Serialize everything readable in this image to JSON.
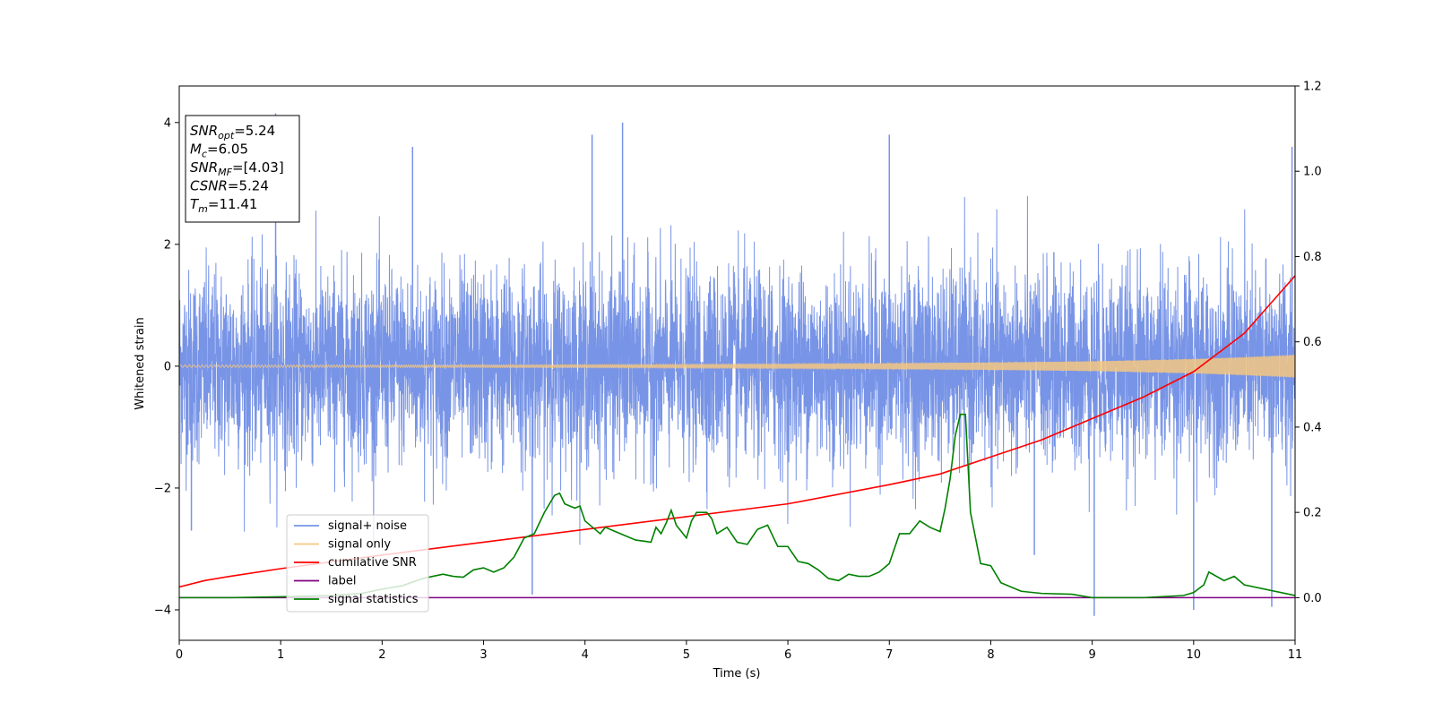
{
  "chart_data": {
    "type": "line",
    "xlabel": "Time (s)",
    "ylabel": "Whitened strain",
    "xlim": [
      0,
      11
    ],
    "ylim": [
      -4.5,
      4.6
    ],
    "ylim_right": [
      -0.1,
      1.2
    ],
    "xticks": [
      0,
      1,
      2,
      3,
      4,
      5,
      6,
      7,
      8,
      9,
      10,
      11
    ],
    "yticks": [
      -4,
      -2,
      0,
      2,
      4
    ],
    "yticks_right": [
      0.0,
      0.2,
      0.4,
      0.6,
      0.8,
      1.0,
      1.2
    ],
    "grid": false,
    "legend_placement": "lower-left",
    "legend": [
      {
        "label": "signal+ noise",
        "color": "#7894e6"
      },
      {
        "label": "signal only",
        "color": "#f5c780"
      },
      {
        "label": "cumilative SNR",
        "color": "#ff0000"
      },
      {
        "label": "label",
        "color": "#800080"
      },
      {
        "label": "signal statistics",
        "color": "#008000"
      }
    ],
    "annotation": {
      "lines": [
        {
          "base": "SNR",
          "sub": "opt",
          "rest": "=5.24"
        },
        {
          "base": "M",
          "sub": "c",
          "rest": "=6.05"
        },
        {
          "base": "SNR",
          "sub": "MF",
          "rest": "=[4.03]"
        },
        {
          "base": "CSNR",
          "sub": "",
          "rest": "=5.24"
        },
        {
          "base": "T",
          "sub": "m",
          "rest": "=11.41"
        }
      ]
    },
    "series": [
      {
        "name": "signal+ noise",
        "axis": "left",
        "color": "#7894e6",
        "description_points": "noise envelope approx ±2 with spikes",
        "spikes": [
          {
            "x": 0.95,
            "y": 4.15
          },
          {
            "x": 2.3,
            "y": 3.6
          },
          {
            "x": 4.07,
            "y": 3.8
          },
          {
            "x": 4.37,
            "y": 4.0
          },
          {
            "x": 7.0,
            "y": 3.8
          },
          {
            "x": 10.97,
            "y": 3.6
          },
          {
            "x": 3.48,
            "y": -3.75
          },
          {
            "x": 9.02,
            "y": -4.1
          },
          {
            "x": 10.0,
            "y": -4.0
          },
          {
            "x": 10.77,
            "y": -3.95
          },
          {
            "x": 0.12,
            "y": -2.7
          },
          {
            "x": 8.43,
            "y": -3.1
          }
        ]
      },
      {
        "name": "signal only",
        "axis": "left",
        "color": "#f5c780",
        "envelope": [
          [
            0,
            0.02
          ],
          [
            2,
            0.02
          ],
          [
            4,
            0.025
          ],
          [
            6,
            0.035
          ],
          [
            8,
            0.06
          ],
          [
            9,
            0.08
          ],
          [
            10,
            0.12
          ],
          [
            10.5,
            0.15
          ],
          [
            11,
            0.19
          ]
        ]
      },
      {
        "name": "cumilative SNR",
        "axis": "right",
        "color": "#ff0000",
        "x": [
          0,
          0.25,
          0.5,
          1,
          2,
          3,
          4,
          5,
          6,
          7,
          7.5,
          8,
          8.5,
          9,
          9.5,
          10,
          10.5,
          11
        ],
        "values": [
          0.025,
          0.04,
          0.05,
          0.068,
          0.1,
          0.13,
          0.16,
          0.19,
          0.22,
          0.265,
          0.29,
          0.33,
          0.37,
          0.42,
          0.47,
          0.53,
          0.62,
          0.755
        ]
      },
      {
        "name": "label",
        "axis": "right",
        "color": "#800080",
        "x": [
          0,
          11
        ],
        "values": [
          0.0,
          0.0
        ]
      },
      {
        "name": "signal statistics",
        "axis": "right",
        "color": "#008000",
        "x": [
          0,
          0.5,
          1.0,
          1.5,
          1.8,
          2.0,
          2.2,
          2.4,
          2.5,
          2.6,
          2.7,
          2.8,
          2.9,
          3.0,
          3.1,
          3.2,
          3.3,
          3.4,
          3.5,
          3.6,
          3.7,
          3.75,
          3.8,
          3.9,
          3.95,
          4.0,
          4.1,
          4.15,
          4.2,
          4.3,
          4.4,
          4.5,
          4.6,
          4.65,
          4.7,
          4.75,
          4.8,
          4.85,
          4.9,
          5.0,
          5.05,
          5.1,
          5.2,
          5.25,
          5.3,
          5.4,
          5.5,
          5.6,
          5.7,
          5.8,
          5.9,
          6.0,
          6.1,
          6.2,
          6.3,
          6.4,
          6.5,
          6.6,
          6.7,
          6.8,
          6.9,
          7.0,
          7.1,
          7.2,
          7.3,
          7.4,
          7.5,
          7.55,
          7.6,
          7.65,
          7.7,
          7.75,
          7.8,
          7.9,
          8.0,
          8.1,
          8.2,
          8.3,
          8.5,
          8.8,
          9.0,
          9.5,
          9.9,
          10.0,
          10.1,
          10.15,
          10.3,
          10.4,
          10.5,
          11.0
        ],
        "values": [
          0.0,
          0.0,
          0.002,
          0.005,
          0.01,
          0.02,
          0.028,
          0.045,
          0.05,
          0.055,
          0.05,
          0.048,
          0.065,
          0.07,
          0.06,
          0.07,
          0.095,
          0.14,
          0.15,
          0.2,
          0.24,
          0.245,
          0.22,
          0.21,
          0.215,
          0.18,
          0.16,
          0.15,
          0.165,
          0.155,
          0.145,
          0.135,
          0.132,
          0.13,
          0.165,
          0.15,
          0.175,
          0.205,
          0.17,
          0.14,
          0.18,
          0.2,
          0.2,
          0.185,
          0.15,
          0.165,
          0.13,
          0.125,
          0.16,
          0.17,
          0.12,
          0.12,
          0.085,
          0.08,
          0.065,
          0.045,
          0.04,
          0.055,
          0.05,
          0.05,
          0.06,
          0.08,
          0.15,
          0.15,
          0.18,
          0.165,
          0.155,
          0.21,
          0.28,
          0.38,
          0.43,
          0.43,
          0.2,
          0.08,
          0.075,
          0.035,
          0.025,
          0.015,
          0.01,
          0.008,
          0.0,
          0.0,
          0.005,
          0.012,
          0.03,
          0.06,
          0.04,
          0.05,
          0.03,
          0.005
        ]
      }
    ]
  }
}
